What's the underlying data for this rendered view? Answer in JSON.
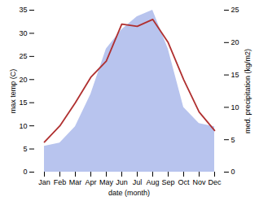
{
  "chart_data": {
    "type": "line",
    "categories": [
      "Jan",
      "Feb",
      "Mar",
      "Apr",
      "May",
      "Jun",
      "Jul",
      "Aug",
      "Sep",
      "Oct",
      "Nov",
      "Dec"
    ],
    "xlabel": "date (month)",
    "ylabel": "max temp (C)",
    "y2label": "med. precipitation (kg/m2)",
    "series": [
      {
        "type": "area",
        "axis": "y2",
        "color": "#b8c4ee",
        "values": [
          4.0,
          4.5,
          7.0,
          12.0,
          19.0,
          22.0,
          24.0,
          25.0,
          19.0,
          10.0,
          7.5,
          7.0
        ]
      },
      {
        "type": "line",
        "color": "#b03030",
        "values": [
          6.5,
          10.0,
          15.0,
          20.5,
          24.0,
          32.0,
          31.5,
          33.0,
          28.0,
          20.0,
          13.0,
          9.0
        ]
      }
    ],
    "ylim": [
      0,
      35
    ],
    "yticks": [
      0,
      5,
      10,
      15,
      20,
      25,
      30,
      35
    ],
    "y2lim": [
      0,
      25
    ],
    "y2ticks": [
      0,
      5,
      10,
      15,
      20,
      25
    ]
  }
}
